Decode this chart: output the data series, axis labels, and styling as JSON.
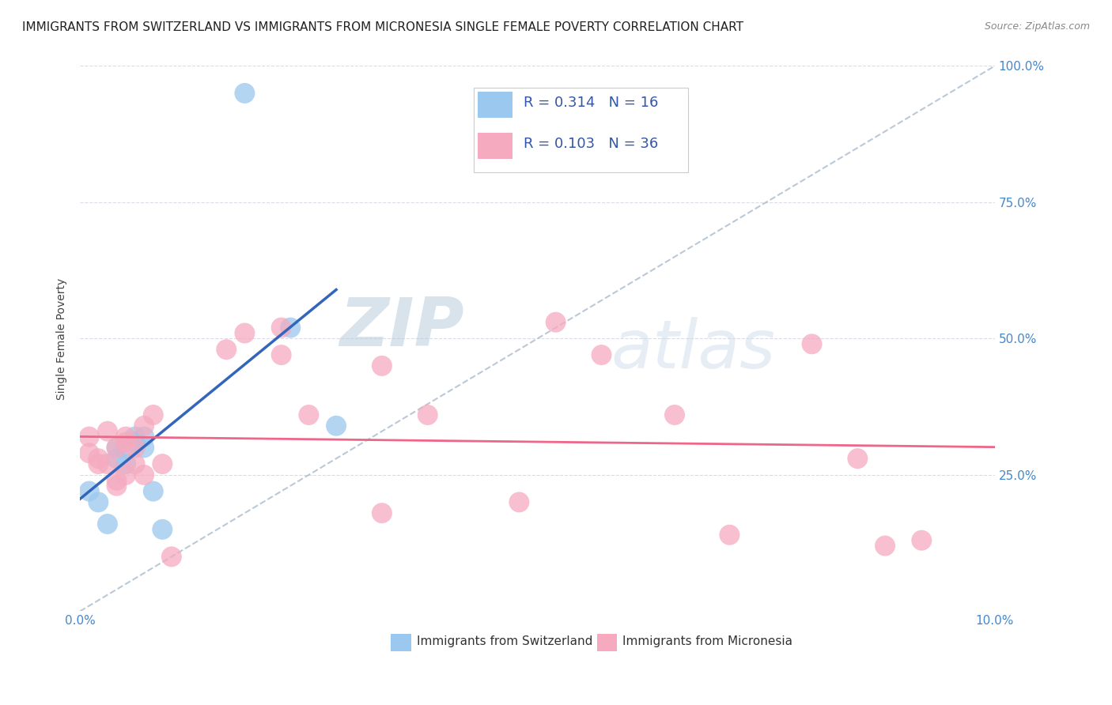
{
  "title": "IMMIGRANTS FROM SWITZERLAND VS IMMIGRANTS FROM MICRONESIA SINGLE FEMALE POVERTY CORRELATION CHART",
  "source": "Source: ZipAtlas.com",
  "ylabel": "Single Female Poverty",
  "legend_label_1": "Immigrants from Switzerland",
  "legend_label_2": "Immigrants from Micronesia",
  "legend_r1": "0.314",
  "legend_n1": "16",
  "legend_r2": "0.103",
  "legend_n2": "36",
  "xlim": [
    0.0,
    0.1
  ],
  "ylim": [
    0.0,
    1.0
  ],
  "xticks": [
    0.0,
    0.02,
    0.04,
    0.06,
    0.08,
    0.1
  ],
  "yticks": [
    0.0,
    0.25,
    0.5,
    0.75,
    1.0
  ],
  "xtick_labels": [
    "0.0%",
    "",
    "",
    "",
    "",
    "10.0%"
  ],
  "ytick_right_labels": [
    "",
    "25.0%",
    "50.0%",
    "75.0%",
    "100.0%"
  ],
  "color_swiss": "#9BC8EE",
  "color_micro": "#F5AABF",
  "color_swiss_line": "#3366BB",
  "color_micro_line": "#EE6688",
  "color_diag_line": "#AABBCC",
  "watermark_zip": "ZIP",
  "watermark_atlas": "atlas",
  "swiss_x": [
    0.001,
    0.002,
    0.003,
    0.004,
    0.004,
    0.005,
    0.005,
    0.006,
    0.006,
    0.007,
    0.007,
    0.008,
    0.009,
    0.018,
    0.023,
    0.028
  ],
  "swiss_y": [
    0.22,
    0.2,
    0.16,
    0.28,
    0.3,
    0.27,
    0.3,
    0.31,
    0.32,
    0.3,
    0.32,
    0.22,
    0.15,
    0.95,
    0.52,
    0.34
  ],
  "micro_x": [
    0.001,
    0.001,
    0.002,
    0.002,
    0.003,
    0.003,
    0.004,
    0.004,
    0.004,
    0.005,
    0.005,
    0.005,
    0.006,
    0.006,
    0.007,
    0.007,
    0.008,
    0.009,
    0.01,
    0.016,
    0.018,
    0.022,
    0.022,
    0.025,
    0.033,
    0.033,
    0.038,
    0.048,
    0.052,
    0.057,
    0.065,
    0.071,
    0.08,
    0.085,
    0.088,
    0.092
  ],
  "micro_y": [
    0.29,
    0.32,
    0.28,
    0.27,
    0.33,
    0.27,
    0.3,
    0.24,
    0.23,
    0.32,
    0.31,
    0.25,
    0.3,
    0.27,
    0.25,
    0.34,
    0.36,
    0.27,
    0.1,
    0.48,
    0.51,
    0.52,
    0.47,
    0.36,
    0.45,
    0.18,
    0.36,
    0.2,
    0.53,
    0.47,
    0.36,
    0.14,
    0.49,
    0.28,
    0.12,
    0.13
  ],
  "title_fontsize": 11,
  "axis_fontsize": 10,
  "tick_fontsize": 11
}
